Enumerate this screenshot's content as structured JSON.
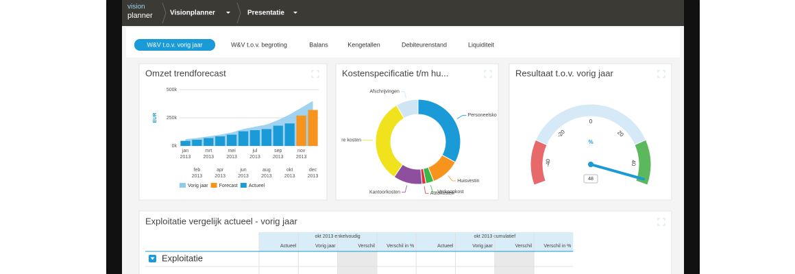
{
  "topbar": {
    "logo_top": "vision",
    "logo_bottom": "planner",
    "menus": [
      "Visionplanner",
      "Presentatie"
    ]
  },
  "tabs": [
    "W&V t.o.v. vorig jaar",
    "W&V t.o.v. begroting",
    "Balans",
    "Kengetallen",
    "Debiteurenstand",
    "Liquiditeit"
  ],
  "active_tab": 0,
  "widgets": [
    {
      "title": "Omzet trendforecast",
      "chart": {
        "type": "bar",
        "y_label": "EUR",
        "categories": [
          "jan",
          "feb",
          "mrt",
          "apr",
          "mei",
          "jun",
          "jul",
          "aug",
          "sep",
          "okt",
          "nov",
          "dec"
        ],
        "year": "2013",
        "ylim": [
          0,
          500000
        ],
        "yticks": [
          {
            "value": 0,
            "label": "0k"
          },
          {
            "value": 250000,
            "label": "250k"
          },
          {
            "value": 500000,
            "label": "500k"
          }
        ],
        "series": [
          {
            "name": "Vorig jaar",
            "color": "#8fcbee",
            "kind": "area",
            "values": [
              60000,
              70000,
              85000,
              100000,
              120000,
              150000,
              170000,
              190000,
              230000,
              280000,
              340000,
              400000
            ]
          },
          {
            "name": "Forecast",
            "color": "#f7941d",
            "kind": "bar",
            "values": [
              null,
              null,
              null,
              null,
              null,
              null,
              null,
              null,
              null,
              null,
              270000,
              320000
            ]
          },
          {
            "name": "Actueel",
            "color": "#1a9ad6",
            "kind": "bar",
            "values": [
              45000,
              55000,
              70000,
              85000,
              100000,
              130000,
              140000,
              150000,
              180000,
              200000,
              null,
              null
            ]
          }
        ]
      }
    },
    {
      "title": "Kostenspecificatie t/m hu...",
      "chart": {
        "type": "pie",
        "categories": [
          "Personeelsko",
          "Huisvestin",
          "Verkoopkost",
          "Autokosten",
          "Kantoorkosten",
          "re kosten",
          "Afschrijvingen"
        ],
        "values": [
          33,
          11,
          3,
          1.5,
          11,
          32,
          8.5
        ],
        "colors": [
          "#1a9ad6",
          "#f7941d",
          "#3db54a",
          "#e0343c",
          "#8e4f9e",
          "#f0e21c",
          "#cfe5f4"
        ]
      }
    },
    {
      "title": "Resultaat t.o.v. vorig jaar",
      "chart": {
        "type": "gauge",
        "unit": "%",
        "ylim": [
          -50,
          50
        ],
        "yticks": [
          -40,
          -20,
          0,
          20,
          40
        ],
        "bands": [
          {
            "from": -50,
            "to": -30,
            "color": "#e8696c"
          },
          {
            "from": -30,
            "to": 30,
            "color": "#d5e9f7"
          },
          {
            "from": 30,
            "to": 50,
            "color": "#5cb85c"
          }
        ],
        "value": 48
      }
    }
  ],
  "table": {
    "title": "Exploitatie vergelijk actueel - vorig jaar",
    "groups": [
      "okt 2013 enkelvoudig",
      "okt 2013 cumulatief"
    ],
    "columns": [
      "Actueel",
      "Vorig jaar",
      "Verschil",
      "Verschil in %",
      "Actueel",
      "Vorig jaar",
      "Verschil",
      "Verschil in %"
    ],
    "rows": [
      "Exploitatie"
    ]
  }
}
